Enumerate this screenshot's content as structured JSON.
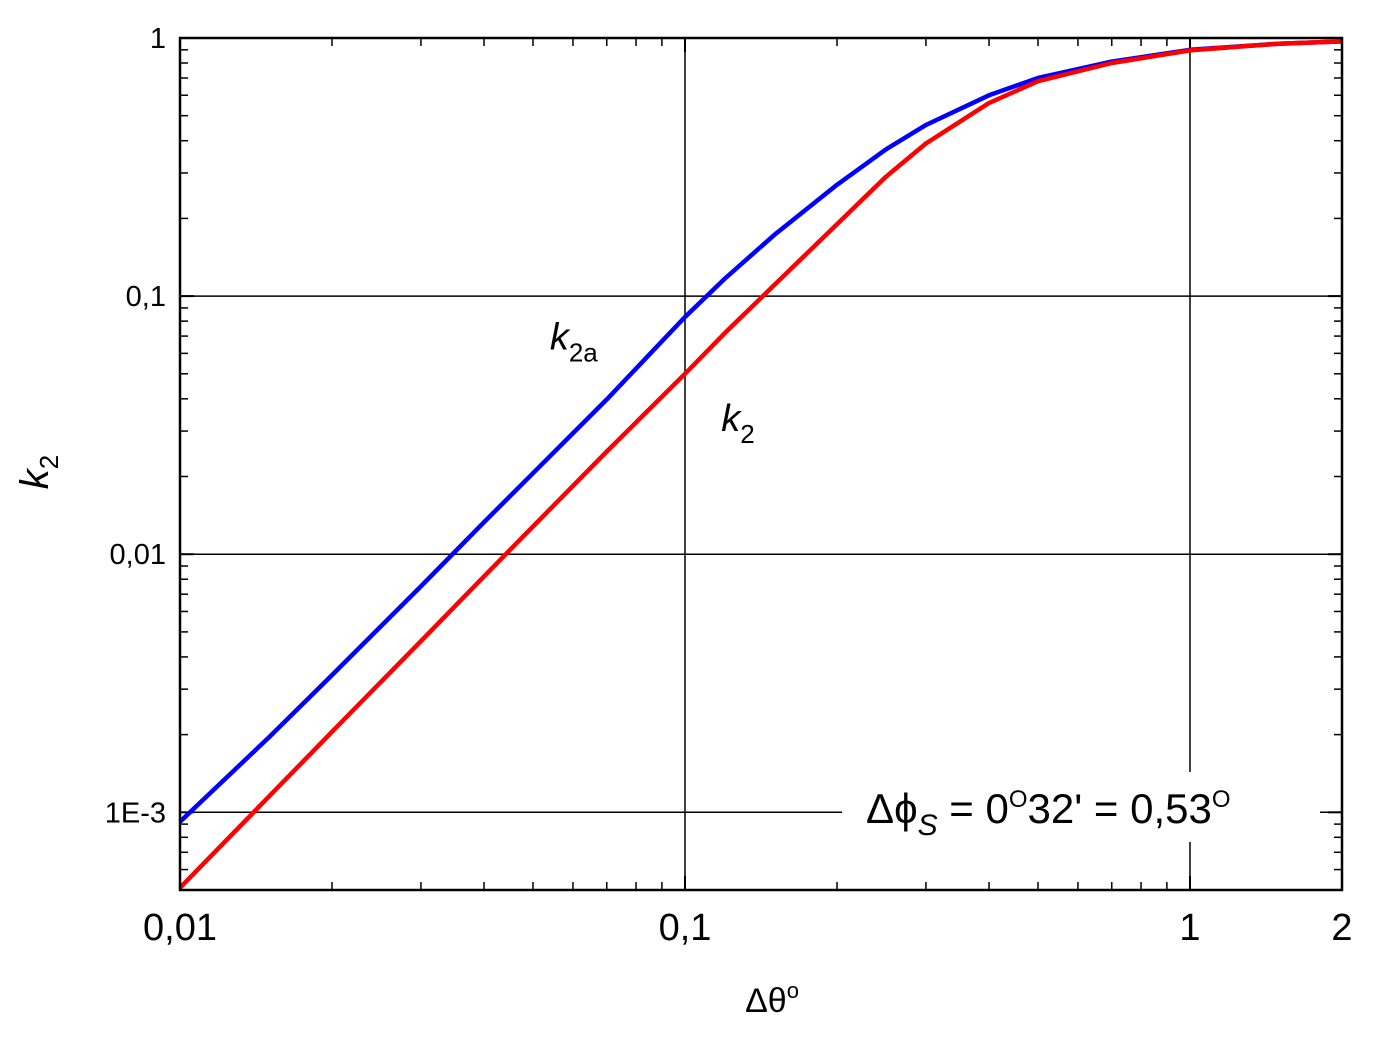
{
  "chart_data": {
    "type": "line",
    "xscale": "log",
    "yscale": "log",
    "xlim": [
      0.01,
      2
    ],
    "ylim": [
      0.0005,
      1
    ],
    "grid": true,
    "xlabel": "Δθ°",
    "ylabel": "k2",
    "xlabel_parts": {
      "base": "Δθ",
      "sup": "o"
    },
    "ylabel_parts": {
      "base": "k",
      "sub": "2"
    },
    "xticks": [
      {
        "value": 0.01,
        "label": "0,01"
      },
      {
        "value": 0.1,
        "label": "0,1"
      },
      {
        "value": 1,
        "label": "1"
      },
      {
        "value": 2,
        "label": "2"
      }
    ],
    "yticks": [
      {
        "value": 1,
        "label": "1"
      },
      {
        "value": 0.1,
        "label": "0,1"
      },
      {
        "value": 0.01,
        "label": "0,01"
      },
      {
        "value": 0.001,
        "label": "1E-3"
      }
    ],
    "series": [
      {
        "name": "k2a",
        "label_parts": {
          "base": "k",
          "sub": "2a"
        },
        "color": "#0000ff",
        "label_at": {
          "x": 0.054,
          "y": 0.062
        },
        "x": [
          0.01,
          0.015,
          0.02,
          0.03,
          0.04,
          0.05,
          0.07,
          0.1,
          0.12,
          0.15,
          0.2,
          0.25,
          0.3,
          0.4,
          0.5,
          0.7,
          1.0,
          1.5,
          2.0
        ],
        "y": [
          0.00092,
          0.00195,
          0.0034,
          0.0075,
          0.0133,
          0.0206,
          0.0398,
          0.083,
          0.117,
          0.172,
          0.27,
          0.37,
          0.46,
          0.6,
          0.7,
          0.81,
          0.9,
          0.95,
          0.97
        ]
      },
      {
        "name": "k2",
        "label_parts": {
          "base": "k",
          "sub": "2"
        },
        "color": "#ff0000",
        "label_at": {
          "x": 0.118,
          "y": 0.03
        },
        "x": [
          0.01,
          0.015,
          0.02,
          0.03,
          0.04,
          0.05,
          0.07,
          0.1,
          0.12,
          0.15,
          0.2,
          0.25,
          0.3,
          0.4,
          0.5,
          0.7,
          1.0,
          1.5,
          2.0
        ],
        "y": [
          0.00051,
          0.00115,
          0.00205,
          0.0046,
          0.0082,
          0.0128,
          0.025,
          0.05,
          0.072,
          0.11,
          0.19,
          0.29,
          0.39,
          0.56,
          0.68,
          0.8,
          0.895,
          0.95,
          0.97
        ]
      }
    ],
    "annotation": {
      "delta": "Δ",
      "phi": "ϕ",
      "sub": "S",
      "eq1": " = 0",
      "deg1": "O",
      "mid": "32' = 0,53",
      "deg2": "O"
    }
  }
}
